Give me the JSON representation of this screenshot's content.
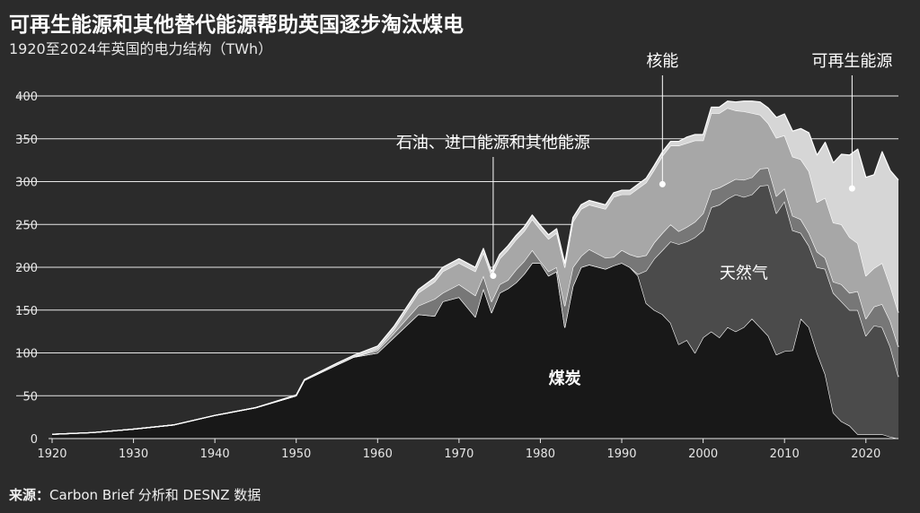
{
  "title": "可再生能源和其他替代能源帮助英国逐步淘汰煤电",
  "subtitle": "1920至2024年英国的电力结构（TWh）",
  "source_label": "来源：",
  "source_text": "Carbon Brief 分析和 DESNZ 数据",
  "chart_data": {
    "type": "area",
    "stacked": true,
    "title": "",
    "xlabel": "",
    "ylabel": "",
    "xlim": [
      1920,
      2024
    ],
    "ylim": [
      0,
      400
    ],
    "yticks": [
      0,
      50,
      100,
      150,
      200,
      250,
      300,
      350,
      400
    ],
    "xticks": [
      1920,
      1930,
      1940,
      1950,
      1960,
      1970,
      1980,
      1990,
      2000,
      2010,
      2020
    ],
    "grid": "horizontal",
    "x": [
      1920,
      1925,
      1930,
      1935,
      1940,
      1945,
      1950,
      1951,
      1955,
      1957,
      1960,
      1962,
      1965,
      1967,
      1968,
      1970,
      1972,
      1973,
      1974,
      1975,
      1976,
      1977,
      1978,
      1979,
      1980,
      1981,
      1982,
      1983,
      1984,
      1985,
      1986,
      1988,
      1989,
      1990,
      1991,
      1992,
      1993,
      1994,
      1995,
      1996,
      1997,
      1998,
      1999,
      2000,
      2001,
      2002,
      2003,
      2004,
      2005,
      2006,
      2007,
      2008,
      2009,
      2010,
      2011,
      2012,
      2013,
      2014,
      2015,
      2016,
      2017,
      2018,
      2019,
      2020,
      2021,
      2022,
      2023,
      2024
    ],
    "series": [
      {
        "name": "煤炭",
        "color": "#181818",
        "values": [
          5,
          7,
          11,
          16,
          27,
          36,
          50,
          68,
          86,
          95,
          100,
          118,
          145,
          143,
          160,
          165,
          142,
          175,
          147,
          170,
          175,
          182,
          192,
          205,
          205,
          190,
          195,
          130,
          178,
          200,
          203,
          198,
          202,
          205,
          200,
          190,
          158,
          150,
          145,
          135,
          110,
          115,
          100,
          118,
          125,
          118,
          130,
          125,
          130,
          140,
          130,
          120,
          98,
          102,
          103,
          140,
          130,
          100,
          75,
          30,
          20,
          15,
          5,
          5,
          5,
          5,
          2,
          0
        ]
      },
      {
        "name": "天然气",
        "color": "#4b4b4b",
        "values": [
          0,
          0,
          0,
          0,
          0,
          0,
          0,
          0,
          0,
          0,
          0,
          0,
          0,
          0,
          0,
          0,
          0,
          0,
          0,
          0,
          0,
          0,
          0,
          0,
          0,
          0,
          0,
          0,
          0,
          0,
          0,
          0,
          0,
          0,
          0,
          2,
          38,
          60,
          75,
          95,
          117,
          115,
          135,
          125,
          145,
          155,
          150,
          160,
          152,
          145,
          165,
          176,
          165,
          175,
          140,
          100,
          95,
          100,
          123,
          140,
          140,
          135,
          145,
          115,
          127,
          125,
          105,
          72
        ]
      },
      {
        "name": "石油、进口能源和其他能源",
        "color": "#777777",
        "values": [
          0,
          0,
          0,
          0,
          0,
          0,
          0,
          0,
          0,
          0,
          3,
          5,
          10,
          20,
          10,
          15,
          25,
          15,
          13,
          10,
          10,
          15,
          15,
          15,
          2,
          5,
          5,
          25,
          22,
          13,
          18,
          13,
          10,
          15,
          15,
          20,
          18,
          19,
          20,
          20,
          15,
          17,
          18,
          20,
          20,
          20,
          18,
          18,
          20,
          20,
          20,
          20,
          20,
          15,
          17,
          16,
          15,
          18,
          13,
          13,
          20,
          20,
          22,
          20,
          22,
          27,
          30,
          35
        ]
      },
      {
        "name": "核能",
        "color": "#a7a7a7",
        "values": [
          0,
          0,
          0,
          0,
          0,
          0,
          0,
          0,
          0,
          0,
          2,
          4,
          15,
          20,
          25,
          25,
          28,
          27,
          30,
          30,
          35,
          35,
          35,
          36,
          37,
          38,
          40,
          45,
          53,
          55,
          52,
          57,
          70,
          65,
          70,
          80,
          85,
          85,
          90,
          92,
          100,
          98,
          95,
          85,
          90,
          87,
          88,
          80,
          80,
          75,
          63,
          52,
          68,
          62,
          69,
          70,
          72,
          58,
          70,
          69,
          70,
          65,
          56,
          50,
          45,
          48,
          41,
          40
        ]
      },
      {
        "name": "可再生能源",
        "color": "#d6d6d6",
        "values": [
          0,
          0,
          0,
          0,
          0,
          0,
          1,
          1,
          2,
          2,
          3,
          4,
          4,
          5,
          5,
          5,
          5,
          5,
          5,
          5,
          5,
          5,
          5,
          5,
          5,
          5,
          5,
          5,
          5,
          5,
          5,
          5,
          5,
          5,
          5,
          5,
          5,
          5,
          5,
          5,
          5,
          7,
          7,
          7,
          7,
          7,
          8,
          10,
          12,
          14,
          15,
          18,
          24,
          25,
          30,
          36,
          45,
          55,
          65,
          70,
          82,
          96,
          110,
          115,
          109,
          130,
          135,
          155
        ]
      }
    ],
    "annotations": [
      {
        "text": "核能",
        "x": 1995,
        "y": 297,
        "series": "核能"
      },
      {
        "text": "可再生能源",
        "x": 2018.3,
        "y": 292,
        "series": "可再生能源"
      },
      {
        "text": "石油、进口能源和其他能源",
        "x": 1974.2,
        "y": 190,
        "series": "石油、进口能源和其他能源"
      },
      {
        "text": "天然气",
        "x": 2005,
        "y": 193,
        "series": "天然气"
      },
      {
        "text": "煤炭",
        "x": 1983,
        "y": 70,
        "series": "煤炭"
      }
    ]
  }
}
